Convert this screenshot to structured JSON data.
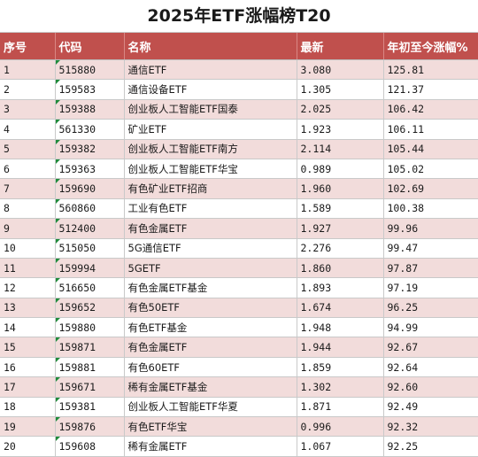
{
  "title": "2025年ETF涨幅榜T20",
  "headers": [
    "序号",
    "代码",
    "名称",
    "最新",
    "年初至今涨幅%"
  ],
  "rows": [
    [
      "1",
      "515880",
      "通信ETF",
      "3.080",
      "125.81"
    ],
    [
      "2",
      "159583",
      "通信设备ETF",
      "1.305",
      "121.37"
    ],
    [
      "3",
      "159388",
      "创业板人工智能ETF国泰",
      "2.025",
      "106.42"
    ],
    [
      "4",
      "561330",
      "矿业ETF",
      "1.923",
      "106.11"
    ],
    [
      "5",
      "159382",
      "创业板人工智能ETF南方",
      "2.114",
      "105.44"
    ],
    [
      "6",
      "159363",
      "创业板人工智能ETF华宝",
      "0.989",
      "105.02"
    ],
    [
      "7",
      "159690",
      "有色矿业ETF招商",
      "1.960",
      "102.69"
    ],
    [
      "8",
      "560860",
      "工业有色ETF",
      "1.589",
      "100.38"
    ],
    [
      "9",
      "512400",
      "有色金属ETF",
      "1.927",
      "99.96"
    ],
    [
      "10",
      "515050",
      "5G通信ETF",
      "2.276",
      "99.47"
    ],
    [
      "11",
      "159994",
      "5GETF",
      "1.860",
      "97.87"
    ],
    [
      "12",
      "516650",
      "有色金属ETF基金",
      "1.893",
      "97.19"
    ],
    [
      "13",
      "159652",
      "有色50ETF",
      "1.674",
      "96.25"
    ],
    [
      "14",
      "159880",
      "有色ETF基金",
      "1.948",
      "94.99"
    ],
    [
      "15",
      "159871",
      "有色金属ETF",
      "1.944",
      "92.67"
    ],
    [
      "16",
      "159881",
      "有色60ETF",
      "1.859",
      "92.64"
    ],
    [
      "17",
      "159671",
      "稀有金属ETF基金",
      "1.302",
      "92.60"
    ],
    [
      "18",
      "159381",
      "创业板人工智能ETF华夏",
      "1.871",
      "92.49"
    ],
    [
      "19",
      "159876",
      "有色ETF华宝",
      "0.996",
      "92.32"
    ],
    [
      "20",
      "159608",
      "稀有金属ETF",
      "1.067",
      "92.25"
    ]
  ]
}
